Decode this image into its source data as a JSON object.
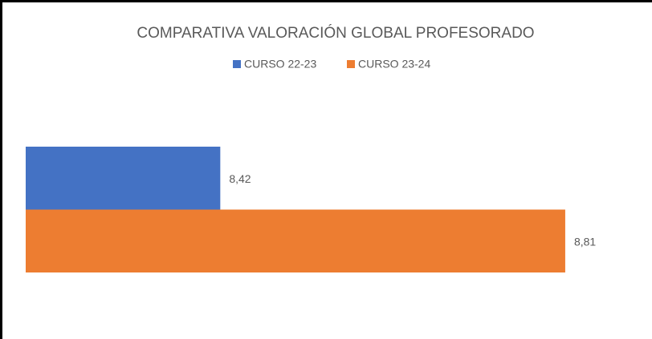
{
  "chart_data": {
    "type": "hbar",
    "title": "COMPARATIVA VALORACIÓN GLOBAL PROFESORADO",
    "categories": [
      null
    ],
    "series": [
      {
        "name": "CURSO 22-23",
        "color": "#4472c4",
        "values": [
          8.42
        ],
        "value_labels": [
          "8,42"
        ]
      },
      {
        "name": "CURSO 23-24",
        "color": "#ed7d31",
        "values": [
          8.81
        ],
        "value_labels": [
          "8,81"
        ]
      }
    ],
    "xlim": [
      8.2,
      8.85
    ],
    "legend": "top"
  }
}
